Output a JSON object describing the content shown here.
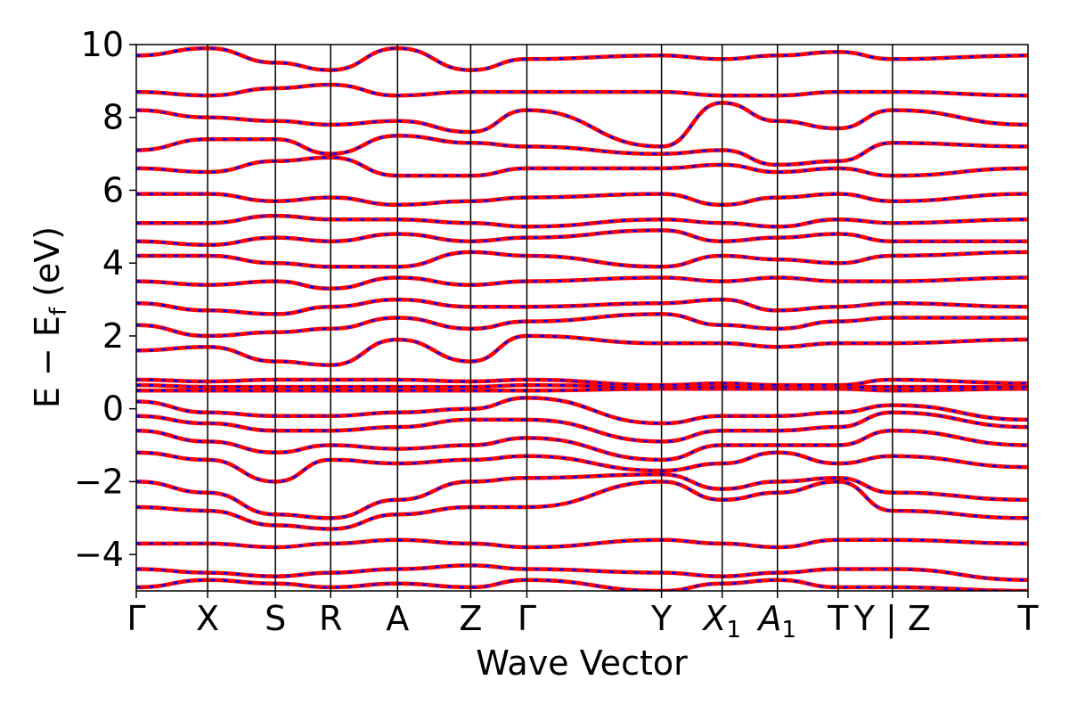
{
  "chart_data": {
    "type": "line",
    "title": "",
    "xlabel": "Wave Vector",
    "ylabel_main": "E − E",
    "ylabel_sub": "f",
    "ylabel_unit": " (eV)",
    "ylim": [
      -5,
      10
    ],
    "yticks": [
      {
        "value": -4,
        "label": "−4"
      },
      {
        "value": -2,
        "label": "−2"
      },
      {
        "value": 0,
        "label": "0"
      },
      {
        "value": 2,
        "label": "2"
      },
      {
        "value": 4,
        "label": "4"
      },
      {
        "value": 6,
        "label": "6"
      },
      {
        "value": 8,
        "label": "8"
      },
      {
        "value": 10,
        "label": "10"
      }
    ],
    "kpath": [
      {
        "position": 0.0,
        "label": "Γ",
        "sub": ""
      },
      {
        "position": 0.08,
        "label": "X",
        "sub": ""
      },
      {
        "position": 0.156,
        "label": "S",
        "sub": ""
      },
      {
        "position": 0.218,
        "label": "R",
        "sub": ""
      },
      {
        "position": 0.293,
        "label": "A",
        "sub": ""
      },
      {
        "position": 0.375,
        "label": "Z",
        "sub": ""
      },
      {
        "position": 0.438,
        "label": "Γ",
        "sub": ""
      },
      {
        "position": 0.589,
        "label": "Y",
        "sub": ""
      },
      {
        "position": 0.657,
        "label": "X",
        "sub": "1"
      },
      {
        "position": 0.719,
        "label": "A",
        "sub": "1"
      },
      {
        "position": 0.787,
        "label": "T",
        "sub": ""
      },
      {
        "position": 0.848,
        "label": "Y | Z",
        "sub": ""
      },
      {
        "position": 1.0,
        "label": "T",
        "sub": ""
      }
    ],
    "series": [
      {
        "color": "#ff0000",
        "style": "solid"
      },
      {
        "color": "#0000ff",
        "style": "dashed"
      }
    ],
    "bands": [
      {
        "k": [
          0.0,
          0.08,
          0.156,
          0.218,
          0.293,
          0.375,
          0.438,
          0.589,
          0.657,
          0.719,
          0.787,
          0.848,
          1.0
        ],
        "E": [
          -4.9,
          -4.7,
          -4.8,
          -4.9,
          -4.8,
          -4.9,
          -4.7,
          -5.0,
          -4.8,
          -4.7,
          -4.9,
          -4.9,
          -5.0
        ]
      },
      {
        "k": [
          0.0,
          0.08,
          0.156,
          0.218,
          0.293,
          0.375,
          0.438,
          0.589,
          0.657,
          0.719,
          0.787,
          0.848,
          1.0
        ],
        "E": [
          -4.4,
          -4.5,
          -4.6,
          -4.5,
          -4.4,
          -4.3,
          -4.4,
          -4.5,
          -4.6,
          -4.5,
          -4.4,
          -4.4,
          -4.7
        ]
      },
      {
        "k": [
          0.0,
          0.08,
          0.156,
          0.218,
          0.293,
          0.375,
          0.438,
          0.589,
          0.657,
          0.719,
          0.787,
          0.848,
          1.0
        ],
        "E": [
          -3.7,
          -3.7,
          -3.8,
          -3.7,
          -3.6,
          -3.7,
          -3.8,
          -3.6,
          -3.7,
          -3.8,
          -3.6,
          -3.6,
          -3.7
        ]
      },
      {
        "k": [
          0.0,
          0.08,
          0.156,
          0.218,
          0.293,
          0.375,
          0.438,
          0.589,
          0.657,
          0.719,
          0.787,
          0.848,
          1.0
        ],
        "E": [
          -2.7,
          -2.8,
          -3.2,
          -3.3,
          -2.9,
          -2.7,
          -2.7,
          -2.0,
          -2.5,
          -2.3,
          -2.0,
          -2.8,
          -3.0
        ]
      },
      {
        "k": [
          0.0,
          0.08,
          0.156,
          0.218,
          0.293,
          0.375,
          0.438,
          0.589,
          0.657,
          0.719,
          0.787,
          0.848,
          1.0
        ],
        "E": [
          -2.0,
          -2.3,
          -2.9,
          -3.0,
          -2.5,
          -2.0,
          -1.9,
          -1.8,
          -2.2,
          -2.0,
          -1.9,
          -2.3,
          -2.5
        ]
      },
      {
        "k": [
          0.0,
          0.08,
          0.156,
          0.218,
          0.293,
          0.375,
          0.438,
          0.589,
          0.657,
          0.719,
          0.787,
          0.848,
          1.0
        ],
        "E": [
          -1.2,
          -1.4,
          -2.0,
          -1.4,
          -1.5,
          -1.4,
          -1.3,
          -1.7,
          -1.5,
          -1.2,
          -1.5,
          -1.3,
          -1.6
        ]
      },
      {
        "k": [
          0.0,
          0.08,
          0.156,
          0.218,
          0.293,
          0.375,
          0.438,
          0.589,
          0.657,
          0.719,
          0.787,
          0.848,
          1.0
        ],
        "E": [
          -0.6,
          -0.9,
          -1.2,
          -1.0,
          -1.1,
          -1.0,
          -0.8,
          -1.4,
          -1.0,
          -1.0,
          -1.0,
          -0.6,
          -1.0
        ]
      },
      {
        "k": [
          0.0,
          0.08,
          0.156,
          0.218,
          0.293,
          0.375,
          0.438,
          0.589,
          0.657,
          0.719,
          0.787,
          0.848,
          1.0
        ],
        "E": [
          -0.2,
          -0.4,
          -0.6,
          -0.6,
          -0.5,
          -0.3,
          -0.3,
          -0.9,
          -0.6,
          -0.6,
          -0.5,
          -0.1,
          -0.5
        ]
      },
      {
        "k": [
          0.0,
          0.08,
          0.156,
          0.218,
          0.293,
          0.375,
          0.438,
          0.589,
          0.657,
          0.719,
          0.787,
          0.848,
          1.0
        ],
        "E": [
          0.2,
          -0.1,
          -0.2,
          -0.2,
          -0.1,
          0.0,
          0.3,
          -0.4,
          -0.2,
          -0.2,
          -0.1,
          0.1,
          -0.3
        ]
      },
      {
        "k": [
          0.0,
          0.08,
          0.156,
          0.218,
          0.293,
          0.375,
          0.438,
          0.589,
          0.657,
          0.719,
          0.787,
          0.848,
          1.0
        ],
        "E": [
          0.5,
          0.5,
          0.5,
          0.5,
          0.5,
          0.5,
          0.5,
          0.55,
          0.55,
          0.55,
          0.55,
          0.5,
          0.55
        ]
      },
      {
        "k": [
          0.0,
          0.08,
          0.156,
          0.218,
          0.293,
          0.375,
          0.438,
          0.589,
          0.657,
          0.719,
          0.787,
          0.848,
          1.0
        ],
        "E": [
          0.65,
          0.6,
          0.6,
          0.6,
          0.6,
          0.6,
          0.65,
          0.6,
          0.6,
          0.6,
          0.6,
          0.6,
          0.6
        ]
      },
      {
        "k": [
          0.0,
          0.08,
          0.156,
          0.218,
          0.293,
          0.375,
          0.438,
          0.589,
          0.657,
          0.719,
          0.787,
          0.848,
          1.0
        ],
        "E": [
          0.8,
          0.75,
          0.8,
          0.8,
          0.8,
          0.75,
          0.8,
          0.65,
          0.7,
          0.65,
          0.65,
          0.8,
          0.7
        ]
      },
      {
        "k": [
          0.0,
          0.08,
          0.156,
          0.218,
          0.293,
          0.375,
          0.438,
          0.589,
          0.657,
          0.719,
          0.787,
          0.848,
          1.0
        ],
        "E": [
          1.6,
          1.7,
          1.3,
          1.2,
          1.9,
          1.3,
          2.0,
          1.8,
          1.8,
          1.7,
          1.8,
          1.8,
          1.9
        ]
      },
      {
        "k": [
          0.0,
          0.08,
          0.156,
          0.218,
          0.293,
          0.375,
          0.438,
          0.589,
          0.657,
          0.719,
          0.787,
          0.848,
          1.0
        ],
        "E": [
          2.3,
          2.0,
          2.1,
          2.2,
          2.5,
          2.2,
          2.4,
          2.6,
          2.3,
          2.2,
          2.4,
          2.5,
          2.5
        ]
      },
      {
        "k": [
          0.0,
          0.08,
          0.156,
          0.218,
          0.293,
          0.375,
          0.438,
          0.589,
          0.657,
          0.719,
          0.787,
          0.848,
          1.0
        ],
        "E": [
          2.9,
          2.7,
          2.6,
          2.8,
          3.0,
          2.8,
          2.8,
          2.9,
          3.0,
          2.7,
          2.8,
          2.9,
          2.8
        ]
      },
      {
        "k": [
          0.0,
          0.08,
          0.156,
          0.218,
          0.293,
          0.375,
          0.438,
          0.589,
          0.657,
          0.719,
          0.787,
          0.848,
          1.0
        ],
        "E": [
          3.5,
          3.4,
          3.5,
          3.3,
          3.6,
          3.4,
          3.5,
          3.6,
          3.5,
          3.6,
          3.5,
          3.5,
          3.6
        ]
      },
      {
        "k": [
          0.0,
          0.08,
          0.156,
          0.218,
          0.293,
          0.375,
          0.438,
          0.589,
          0.657,
          0.719,
          0.787,
          0.848,
          1.0
        ],
        "E": [
          4.2,
          4.2,
          4.0,
          3.9,
          3.9,
          4.3,
          4.2,
          3.9,
          4.2,
          4.1,
          4.0,
          4.2,
          4.3
        ]
      },
      {
        "k": [
          0.0,
          0.08,
          0.156,
          0.218,
          0.293,
          0.375,
          0.438,
          0.589,
          0.657,
          0.719,
          0.787,
          0.848,
          1.0
        ],
        "E": [
          4.6,
          4.5,
          4.7,
          4.6,
          4.8,
          4.6,
          4.7,
          4.9,
          4.6,
          4.7,
          4.8,
          4.6,
          4.6
        ]
      },
      {
        "k": [
          0.0,
          0.08,
          0.156,
          0.218,
          0.293,
          0.375,
          0.438,
          0.589,
          0.657,
          0.719,
          0.787,
          0.848,
          1.0
        ],
        "E": [
          5.1,
          5.1,
          5.3,
          5.2,
          5.2,
          5.1,
          5.0,
          5.2,
          5.1,
          5.0,
          5.2,
          5.1,
          5.2
        ]
      },
      {
        "k": [
          0.0,
          0.08,
          0.156,
          0.218,
          0.293,
          0.375,
          0.438,
          0.589,
          0.657,
          0.719,
          0.787,
          0.848,
          1.0
        ],
        "E": [
          5.9,
          5.9,
          5.7,
          5.8,
          5.6,
          5.7,
          5.8,
          5.9,
          5.6,
          5.8,
          5.9,
          5.7,
          5.9
        ]
      },
      {
        "k": [
          0.0,
          0.08,
          0.156,
          0.218,
          0.293,
          0.375,
          0.438,
          0.589,
          0.657,
          0.719,
          0.787,
          0.848,
          1.0
        ],
        "E": [
          6.6,
          6.5,
          6.8,
          6.9,
          6.4,
          6.4,
          6.6,
          6.6,
          6.7,
          6.5,
          6.6,
          6.4,
          6.6
        ]
      },
      {
        "k": [
          0.0,
          0.08,
          0.156,
          0.218,
          0.293,
          0.375,
          0.438,
          0.589,
          0.657,
          0.719,
          0.787,
          0.848,
          1.0
        ],
        "E": [
          7.1,
          7.4,
          7.4,
          7.0,
          7.5,
          7.3,
          7.2,
          7.0,
          7.1,
          6.7,
          6.8,
          7.3,
          7.2
        ]
      },
      {
        "k": [
          0.0,
          0.08,
          0.156,
          0.218,
          0.293,
          0.375,
          0.438,
          0.589,
          0.657,
          0.719,
          0.787,
          0.848,
          1.0
        ],
        "E": [
          8.2,
          8.0,
          7.9,
          7.8,
          7.9,
          7.6,
          8.2,
          7.2,
          8.4,
          7.9,
          7.7,
          8.2,
          7.8
        ]
      },
      {
        "k": [
          0.0,
          0.08,
          0.156,
          0.218,
          0.293,
          0.375,
          0.438,
          0.589,
          0.657,
          0.719,
          0.787,
          0.848,
          1.0
        ],
        "E": [
          8.7,
          8.6,
          8.8,
          8.9,
          8.6,
          8.7,
          8.7,
          8.7,
          8.6,
          8.6,
          8.7,
          8.7,
          8.6
        ]
      },
      {
        "k": [
          0.0,
          0.08,
          0.156,
          0.218,
          0.293,
          0.375,
          0.438,
          0.589,
          0.657,
          0.719,
          0.787,
          0.848,
          1.0
        ],
        "E": [
          9.7,
          9.9,
          9.5,
          9.3,
          9.9,
          9.3,
          9.6,
          9.7,
          9.6,
          9.7,
          9.8,
          9.6,
          9.7
        ]
      }
    ]
  }
}
